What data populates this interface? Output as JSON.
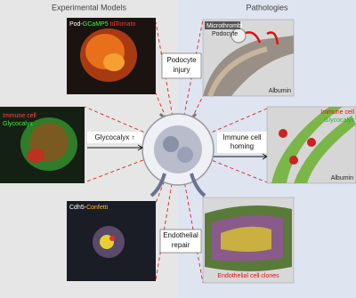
{
  "headers": {
    "left": "Experimental Models",
    "right": "Pathologies"
  },
  "models": [
    {
      "label": [
        "Pod-",
        "GCaMP5",
        " tdTomato"
      ]
    },
    {
      "label": [
        "Immune cell",
        "Glycocalyx"
      ]
    },
    {
      "label": [
        "Cdh5-",
        "Confetti"
      ]
    }
  ],
  "connectors": [
    {
      "label": [
        "Podocyte",
        "injury"
      ]
    },
    {
      "label": [
        "Glycocalyx ↑"
      ]
    },
    {
      "label": [
        "Immune cell",
        "homing"
      ]
    },
    {
      "label": [
        "Endothelial",
        "repair"
      ]
    }
  ],
  "pathologies": [
    {
      "labels": [
        "Microthrombi",
        "Podocyte",
        "Albumin"
      ]
    },
    {
      "labels": [
        "Immune cell",
        "Glycocalyx",
        "Albumin"
      ]
    },
    {
      "labels": [
        "Endothelial cell clones"
      ]
    }
  ]
}
